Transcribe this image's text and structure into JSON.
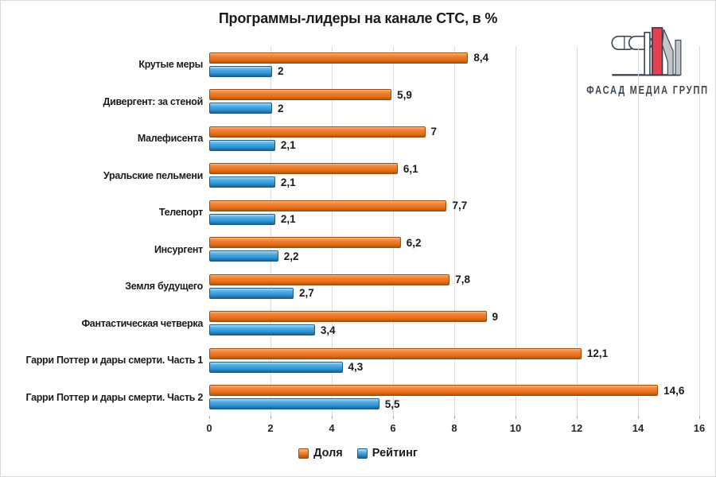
{
  "title": "Программы-лидеры на канале СТС, в %",
  "logo": {
    "text": "ФАСАД МЕДИА ГРУПП"
  },
  "chart_data": {
    "type": "bar",
    "orientation": "horizontal",
    "title": "Программы-лидеры на канале СТС, в %",
    "categories": [
      "Крутые меры",
      "Дивергент: за стеной",
      "Малефисента",
      "Уральские пельмени",
      "Телепорт",
      "Инсургент",
      "Земля будущего",
      "Фантастическая четверка",
      "Гарри Поттер и дары смерти. Часть 1",
      "Гарри Поттер и дары смерти. Часть 2"
    ],
    "series": [
      {
        "name": "Доля",
        "color": "#ED7D31",
        "values": [
          8.4,
          5.9,
          7,
          6.1,
          7.7,
          6.2,
          7.8,
          9,
          12.1,
          14.6
        ],
        "labels": [
          "8,4",
          "5,9",
          "7",
          "6,1",
          "7,7",
          "6,2",
          "7,8",
          "9",
          "12,1",
          "14,6"
        ]
      },
      {
        "name": "Рейтинг",
        "color": "#3E9FDB",
        "values": [
          2,
          2,
          2.1,
          2.1,
          2.1,
          2.2,
          2.7,
          3.4,
          4.3,
          5.5
        ],
        "labels": [
          "2",
          "2",
          "2,1",
          "2,1",
          "2,1",
          "2,2",
          "2,7",
          "3,4",
          "4,3",
          "5,5"
        ]
      }
    ],
    "xlim": [
      0,
      16
    ],
    "x_ticks": [
      "0",
      "2",
      "4",
      "6",
      "8",
      "10",
      "12",
      "14",
      "16"
    ],
    "grid": true,
    "legend_position": "bottom"
  }
}
